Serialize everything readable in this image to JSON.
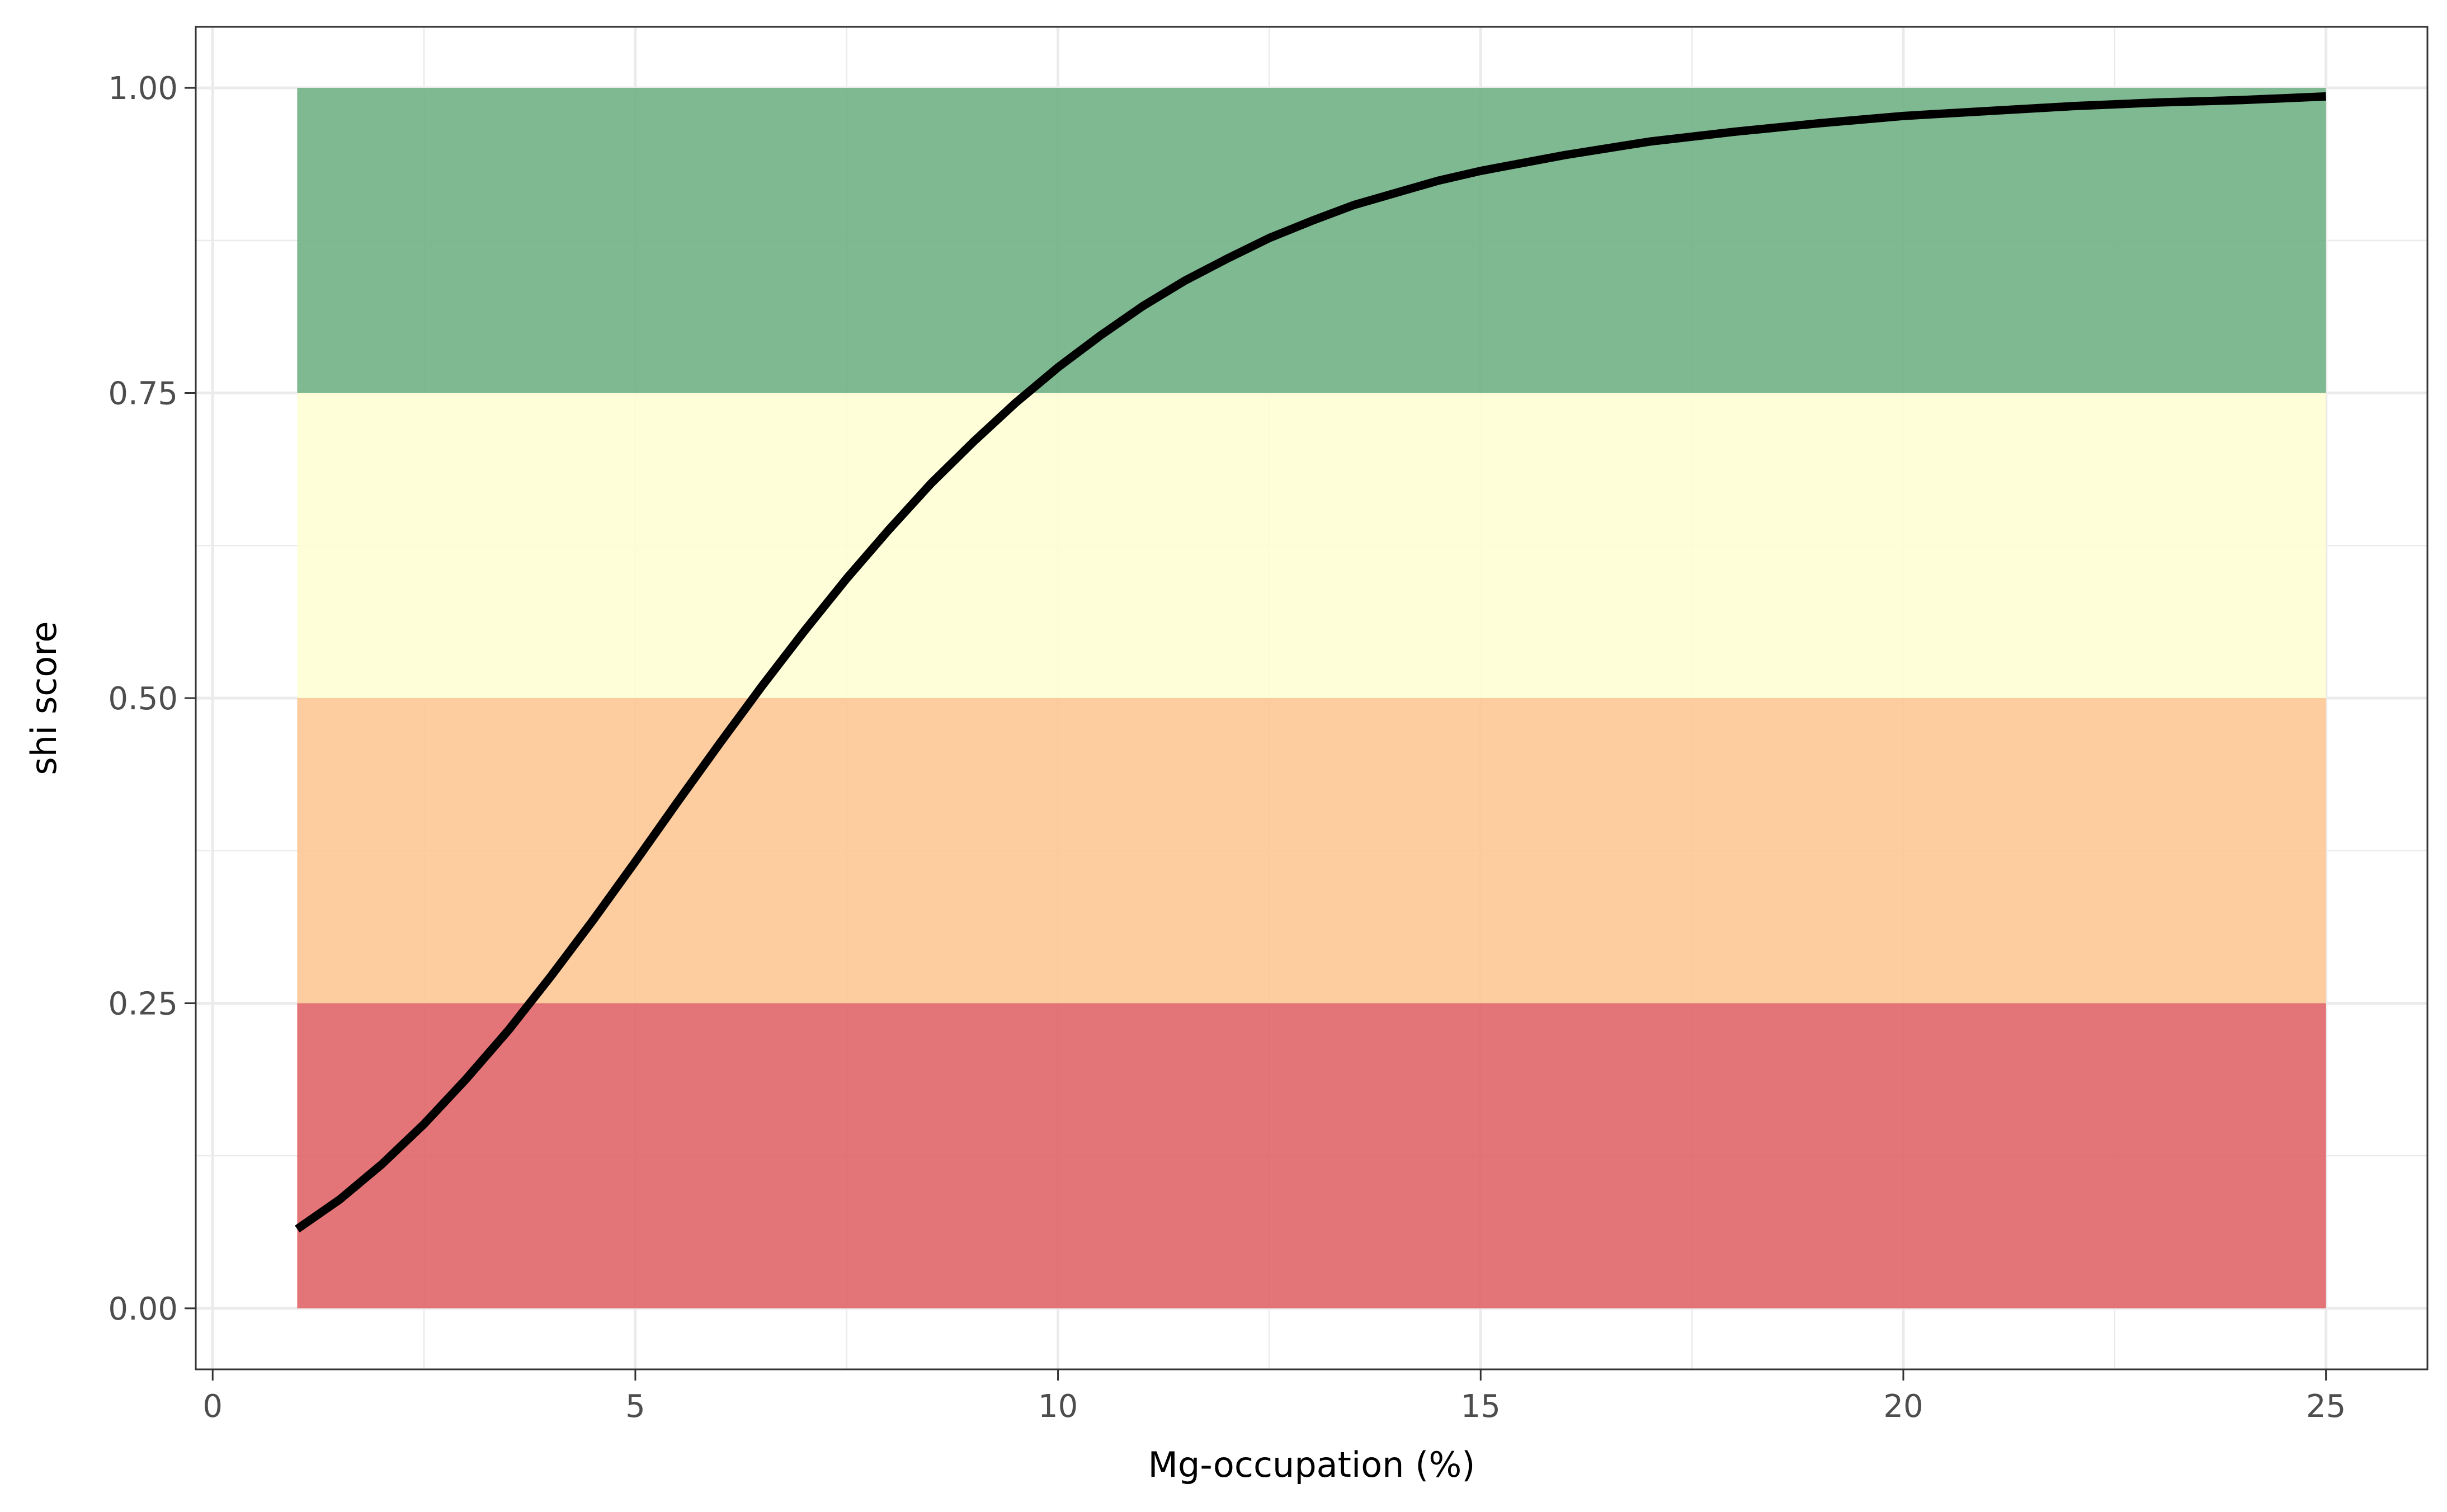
{
  "chart_data": {
    "type": "line",
    "xlabel": "Mg-occupation (%)",
    "ylabel": "shi score",
    "xlim": [
      -0.2,
      26.2
    ],
    "ylim": [
      -0.05,
      1.05
    ],
    "x_ticks": [
      0,
      5,
      10,
      15,
      20,
      25
    ],
    "x_tick_labels": [
      "0",
      "5",
      "10",
      "15",
      "20",
      "25"
    ],
    "y_ticks": [
      0,
      0.25,
      0.5,
      0.75,
      1
    ],
    "y_tick_labels": [
      "0.00",
      "0.25",
      "0.50",
      "0.75",
      "1.00"
    ],
    "grid": true,
    "bands": [
      {
        "x_start": 1,
        "x_end": 25,
        "y_start": 0,
        "y_end": 0.25,
        "color": "#e06568"
      },
      {
        "x_start": 1,
        "x_end": 25,
        "y_start": 0.25,
        "y_end": 0.5,
        "color": "#fdc795"
      },
      {
        "x_start": 1,
        "x_end": 25,
        "y_start": 0.5,
        "y_end": 0.75,
        "color": "#fefed5"
      },
      {
        "x_start": 1,
        "x_end": 25,
        "y_start": 0.75,
        "y_end": 1,
        "color": "#70b185"
      }
    ],
    "band_opacity": 0.9,
    "series": [
      {
        "color": "#000000",
        "x": [
          1,
          1.5,
          2,
          2.5,
          3,
          3.5,
          4,
          4.5,
          5,
          5.5,
          6,
          6.5,
          7,
          7.5,
          8,
          8.5,
          9,
          9.5,
          10,
          10.5,
          11,
          11.5,
          12,
          12.5,
          13,
          13.5,
          14,
          14.5,
          15,
          16,
          17,
          18,
          19,
          20,
          21,
          22,
          23,
          24,
          25
        ],
        "y": [
          0.065,
          0.089,
          0.118,
          0.151,
          0.188,
          0.228,
          0.272,
          0.318,
          0.366,
          0.415,
          0.463,
          0.51,
          0.555,
          0.598,
          0.638,
          0.676,
          0.71,
          0.742,
          0.771,
          0.797,
          0.821,
          0.842,
          0.86,
          0.877,
          0.891,
          0.904,
          0.914,
          0.924,
          0.932,
          0.945,
          0.956,
          0.964,
          0.971,
          0.977,
          0.981,
          0.985,
          0.988,
          0.99,
          0.993
        ]
      }
    ]
  }
}
